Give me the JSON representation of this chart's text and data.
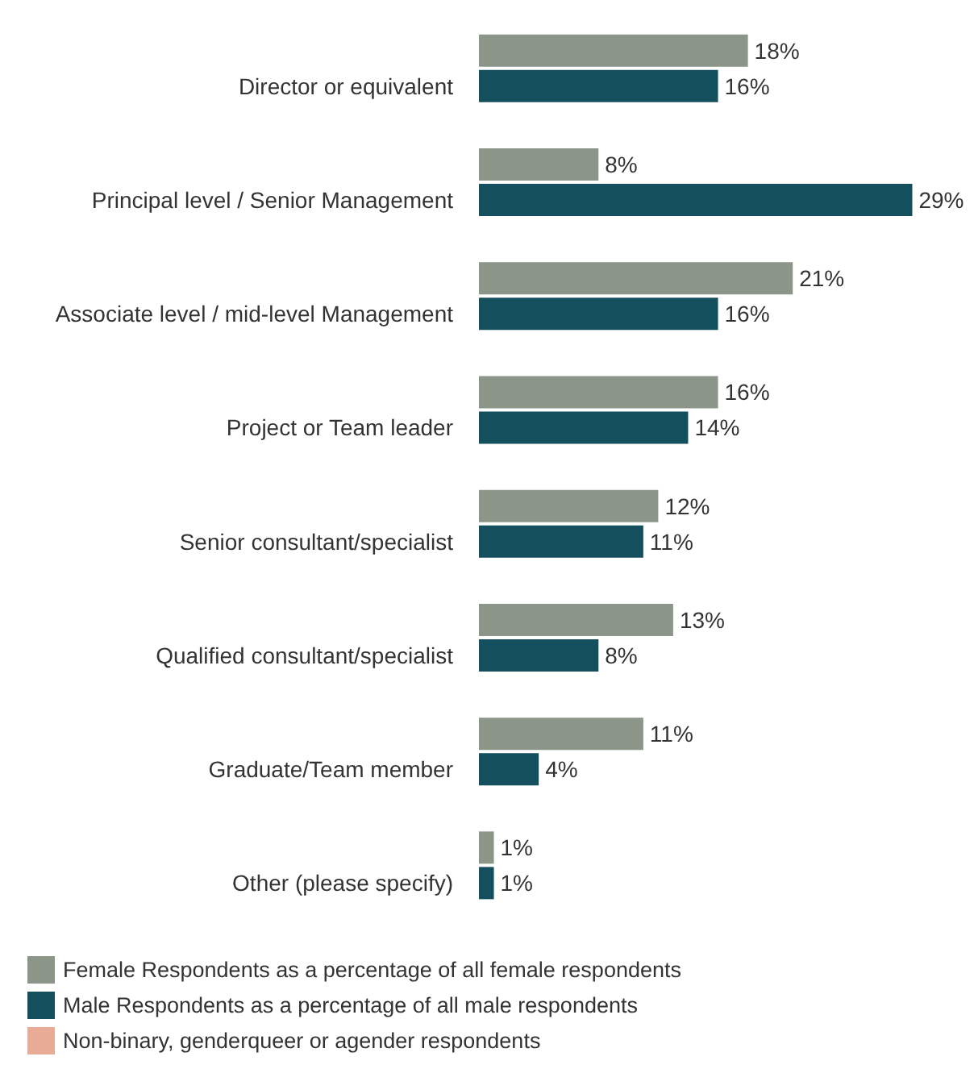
{
  "chart_data": {
    "type": "bar",
    "orientation": "horizontal",
    "categories": [
      "Director or equivalent",
      "Principal level / Senior Management",
      "Associate level / mid-level Management",
      "Project or Team leader",
      "Senior consultant/specialist",
      "Qualified consultant/specialist",
      "Graduate/Team member",
      "Other (please specify)"
    ],
    "series": [
      {
        "name": "Female Respondents as a percentage of all female respondents",
        "color": "#8b9689",
        "values": [
          18,
          8,
          21,
          16,
          12,
          13,
          11,
          1
        ],
        "value_labels": [
          "18%",
          "8%",
          "21%",
          "16%",
          "12%",
          "13%",
          "11%",
          "1%"
        ]
      },
      {
        "name": "Male Respondents as a percentage of all male respondents",
        "color": "#134f5c",
        "values": [
          16,
          29,
          16,
          14,
          11,
          8,
          4,
          1
        ],
        "value_labels": [
          "16%",
          "29%",
          "16%",
          "14%",
          "11%",
          "8%",
          "4%",
          "1%"
        ]
      },
      {
        "name": "Non-binary, genderqueer or agender respondents",
        "color": "#e8ab96",
        "values": [
          null,
          null,
          null,
          null,
          null,
          null,
          null,
          null
        ]
      }
    ],
    "legend": "bottom left"
  }
}
